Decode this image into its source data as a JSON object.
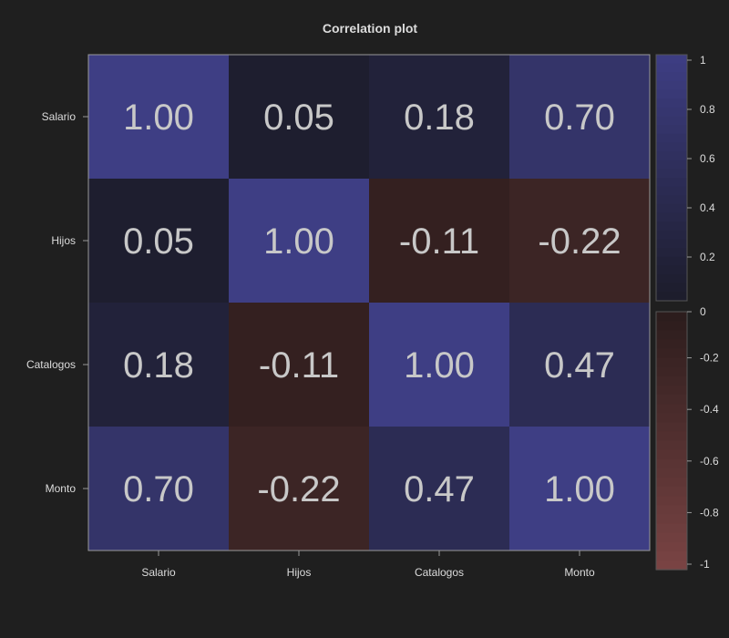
{
  "chart_data": {
    "type": "heatmap",
    "title": "Correlation plot",
    "x_categories": [
      "Salario",
      "Hijos",
      "Catalogos",
      "Monto"
    ],
    "y_categories": [
      "Salario",
      "Hijos",
      "Catalogos",
      "Monto"
    ],
    "values": [
      [
        1.0,
        0.05,
        0.18,
        0.7
      ],
      [
        0.05,
        1.0,
        -0.11,
        -0.22
      ],
      [
        0.18,
        -0.11,
        1.0,
        0.47
      ],
      [
        0.7,
        -0.22,
        0.47,
        1.0
      ]
    ],
    "cell_labels": [
      [
        "1.00",
        "0.05",
        "0.18",
        "0.70"
      ],
      [
        "0.05",
        "1.00",
        "-0.11",
        "-0.22"
      ],
      [
        "0.18",
        "-0.11",
        "1.00",
        "0.47"
      ],
      [
        "0.70",
        "-0.22",
        "0.47",
        "1.00"
      ]
    ],
    "colorbar": {
      "range": [
        -1,
        1
      ],
      "tick_values": [
        1,
        0.8,
        0.6,
        0.4,
        0.2,
        0,
        -0.2,
        -0.4,
        -0.6,
        -0.8,
        -1
      ],
      "tick_labels": [
        "1",
        "0.8",
        "0.6",
        "0.4",
        "0.2",
        "0",
        "-0.2",
        "-0.4",
        "-0.6",
        "-0.8",
        "-1"
      ],
      "positive_color_low": "#1c1c2a",
      "positive_color_high": "#3e3e84",
      "negative_color_low": "#2b1c1c",
      "negative_color_high": "#7a4444"
    },
    "colors": {
      "background": "#1f1f1f",
      "text": "#dcdcdc",
      "cell_text": "#c8c8c8",
      "border": "#9a9a9a"
    }
  }
}
